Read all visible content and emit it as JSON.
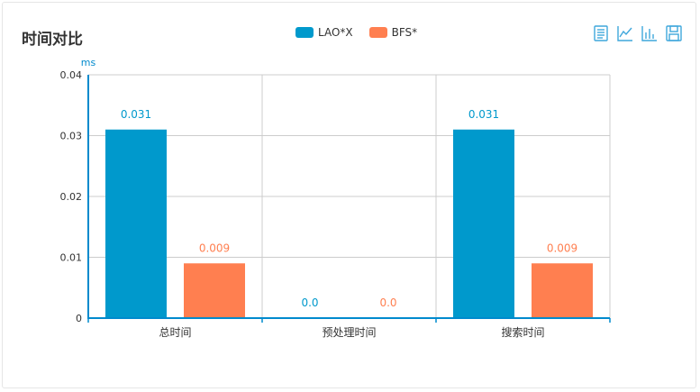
{
  "title": "时间对比",
  "legend": [
    {
      "name": "LAO*X",
      "color": "#0099cc"
    },
    {
      "name": "BFS*",
      "color": "#ff7f50"
    }
  ],
  "toolbox": [
    "data-view-icon",
    "line-chart-icon",
    "bar-chart-icon",
    "save-image-icon"
  ],
  "chart_data": {
    "type": "bar",
    "title": "时间对比",
    "ylabel": "ms",
    "ylim": [
      0,
      0.04
    ],
    "yticks": [
      "0",
      "0.01",
      "0.02",
      "0.03",
      "0.04"
    ],
    "categories": [
      "总时间",
      "预处理时间",
      "搜索时间"
    ],
    "series": [
      {
        "name": "LAO*X",
        "color": "#0099cc",
        "values": [
          0.031,
          0.0,
          0.031
        ],
        "labels": [
          "0.031",
          "0.0",
          "0.031"
        ]
      },
      {
        "name": "BFS*",
        "color": "#ff7f50",
        "values": [
          0.009,
          0.0,
          0.009
        ],
        "labels": [
          "0.009",
          "0.0",
          "0.009"
        ]
      }
    ],
    "grid": true,
    "legend_position": "top-center"
  }
}
